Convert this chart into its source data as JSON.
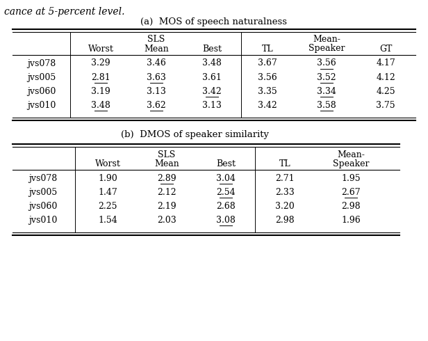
{
  "caption_top": "cance at 5-percent level.",
  "table_a_title": "(a)  MOS of speech naturalness",
  "table_b_title": "(b)  DMOS of speaker similarity",
  "table_a_rows": [
    [
      "jvs078",
      "3.29",
      "3.46",
      "3.48",
      "3.67",
      "3.56",
      "4.17"
    ],
    [
      "jvs005",
      "2.81",
      "3.63",
      "3.61",
      "3.56",
      "3.52",
      "4.12"
    ],
    [
      "jvs060",
      "3.19",
      "3.13",
      "3.42",
      "3.35",
      "3.34",
      "4.25"
    ],
    [
      "jvs010",
      "3.48",
      "3.62",
      "3.13",
      "3.42",
      "3.58",
      "3.75"
    ]
  ],
  "table_a_underlined": [
    [
      false,
      false,
      false,
      false,
      false,
      true,
      false
    ],
    [
      false,
      true,
      true,
      false,
      false,
      true,
      false
    ],
    [
      false,
      false,
      false,
      true,
      false,
      true,
      false
    ],
    [
      false,
      true,
      true,
      false,
      false,
      true,
      false
    ]
  ],
  "table_b_rows": [
    [
      "jvs078",
      "1.90",
      "2.89",
      "3.04",
      "2.71",
      "1.95"
    ],
    [
      "jvs005",
      "1.47",
      "2.12",
      "2.54",
      "2.33",
      "2.67"
    ],
    [
      "jvs060",
      "2.25",
      "2.19",
      "2.68",
      "3.20",
      "2.98"
    ],
    [
      "jvs010",
      "1.54",
      "2.03",
      "3.08",
      "2.98",
      "1.96"
    ]
  ],
  "table_b_underlined": [
    [
      false,
      false,
      true,
      true,
      false,
      false
    ],
    [
      false,
      false,
      false,
      true,
      false,
      true
    ],
    [
      false,
      false,
      false,
      false,
      false,
      false
    ],
    [
      false,
      false,
      false,
      true,
      false,
      false
    ]
  ],
  "font_size": 9.0,
  "bg_color": "#ffffff"
}
